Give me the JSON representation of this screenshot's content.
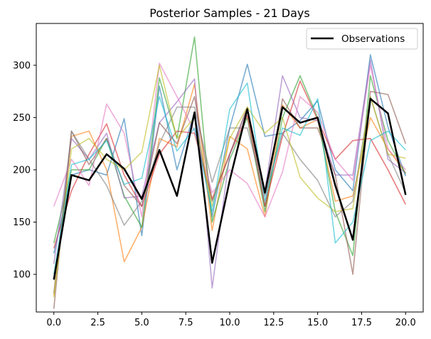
{
  "chart_data": {
    "type": "line",
    "title": "Posterior Samples - 21 Days",
    "xlabel": "",
    "ylabel": "",
    "xlim": [
      -1,
      21
    ],
    "ylim": [
      64,
      340
    ],
    "xticks": [
      "0.0",
      "2.5",
      "5.0",
      "7.5",
      "10.0",
      "12.5",
      "15.0",
      "17.5",
      "20.0"
    ],
    "xtick_values": [
      0,
      2.5,
      5,
      7.5,
      10,
      12.5,
      15,
      17.5,
      20
    ],
    "yticks": [
      "100",
      "150",
      "200",
      "250",
      "300"
    ],
    "ytick_values": [
      100,
      150,
      200,
      250,
      300
    ],
    "grid": false,
    "legend_position": "top-right",
    "x": [
      0,
      1,
      2,
      3,
      4,
      5,
      6,
      7,
      8,
      9,
      10,
      11,
      12,
      13,
      14,
      15,
      16,
      17,
      18,
      19,
      20
    ],
    "observations": {
      "name": "Observations",
      "color": "#000000",
      "values": [
        95,
        195,
        190,
        215,
        201,
        172,
        219,
        175,
        255,
        111,
        190,
        258,
        178,
        260,
        245,
        250,
        185,
        133,
        268,
        254,
        176
      ]
    },
    "samples": [
      {
        "color": "#1f77b4",
        "values": [
          120,
          195,
          200,
          195,
          249,
          137,
          280,
          200,
          255,
          155,
          240,
          301,
          232,
          235,
          247,
          266,
          200,
          180,
          310,
          241,
          194
        ]
      },
      {
        "color": "#ff7f0e",
        "values": [
          80,
          232,
          237,
          200,
          112,
          145,
          230,
          222,
          282,
          142,
          232,
          220,
          155,
          262,
          240,
          248,
          170,
          175,
          250,
          220,
          197
        ]
      },
      {
        "color": "#2ca02c",
        "values": [
          130,
          200,
          200,
          230,
          175,
          145,
          288,
          230,
          327,
          150,
          210,
          250,
          160,
          250,
          290,
          250,
          160,
          118,
          290,
          228,
          196
        ]
      },
      {
        "color": "#d62728",
        "values": [
          125,
          180,
          215,
          244,
          195,
          165,
          215,
          237,
          235,
          172,
          215,
          252,
          165,
          232,
          285,
          248,
          210,
          228,
          230,
          200,
          167
        ]
      },
      {
        "color": "#9467bd",
        "values": [
          110,
          230,
          210,
          235,
          173,
          175,
          245,
          265,
          287,
          87,
          215,
          258,
          180,
          290,
          250,
          247,
          195,
          195,
          305,
          210,
          197
        ]
      },
      {
        "color": "#8c564b",
        "values": [
          67,
          237,
          205,
          230,
          185,
          165,
          245,
          225,
          270,
          170,
          215,
          260,
          165,
          268,
          240,
          240,
          195,
          100,
          275,
          272,
          225
        ]
      },
      {
        "color": "#e377c2",
        "values": [
          165,
          210,
          185,
          263,
          235,
          155,
          302,
          270,
          237,
          178,
          200,
          187,
          155,
          198,
          270,
          255,
          210,
          190,
          300,
          220,
          200
        ]
      },
      {
        "color": "#7f7f7f",
        "values": [
          82,
          237,
          210,
          185,
          147,
          170,
          225,
          260,
          260,
          188,
          240,
          240,
          175,
          235,
          210,
          190,
          155,
          170,
          270,
          215,
          178
        ]
      },
      {
        "color": "#bcbd22",
        "values": [
          78,
          220,
          230,
          210,
          200,
          217,
          300,
          230,
          250,
          165,
          230,
          260,
          235,
          250,
          193,
          173,
          160,
          163,
          270,
          215,
          211
        ]
      },
      {
        "color": "#17becf",
        "values": [
          100,
          205,
          210,
          228,
          186,
          192,
          270,
          218,
          240,
          160,
          258,
          283,
          170,
          240,
          233,
          268,
          130,
          150,
          228,
          237,
          219
        ]
      }
    ]
  }
}
